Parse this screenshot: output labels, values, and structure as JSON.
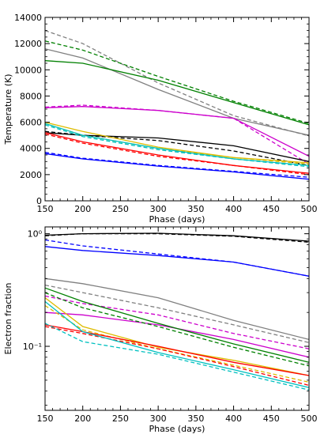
{
  "chart_data": [
    {
      "type": "line",
      "xlabel": "Phase (days)",
      "ylabel": "Temperature (K)",
      "xlim": [
        150,
        500
      ],
      "ylim": [
        0,
        14000
      ],
      "yscale": "linear",
      "xticks": [
        150,
        200,
        250,
        300,
        350,
        400,
        450,
        500
      ],
      "yticks": [
        0,
        2000,
        4000,
        6000,
        8000,
        10000,
        12000,
        14000
      ],
      "series": [
        {
          "color": "#808080",
          "style": "dashed",
          "x": [
            150,
            200,
            300,
            400,
            500
          ],
          "y": [
            13000,
            12000,
            9000,
            6500,
            4950
          ]
        },
        {
          "color": "#808080",
          "style": "solid",
          "x": [
            150,
            200,
            300,
            400,
            500
          ],
          "y": [
            11600,
            10900,
            8500,
            6300,
            5000
          ]
        },
        {
          "color": "#008000",
          "style": "dashed",
          "x": [
            150,
            200,
            300,
            400,
            500
          ],
          "y": [
            12200,
            11500,
            9500,
            7600,
            5900
          ]
        },
        {
          "color": "#008000",
          "style": "solid",
          "x": [
            150,
            200,
            300,
            400,
            500
          ],
          "y": [
            10700,
            10500,
            9200,
            7500,
            5800
          ]
        },
        {
          "color": "#cc00cc",
          "style": "dashed",
          "x": [
            150,
            200,
            300,
            400,
            500
          ],
          "y": [
            7150,
            7300,
            6900,
            6300,
            2800
          ]
        },
        {
          "color": "#cc00cc",
          "style": "solid",
          "x": [
            150,
            200,
            300,
            400,
            500
          ],
          "y": [
            7100,
            7200,
            6900,
            6300,
            3400
          ]
        },
        {
          "color": "#000000",
          "style": "dashed",
          "x": [
            150,
            200,
            300,
            400,
            500
          ],
          "y": [
            5300,
            5000,
            4600,
            3800,
            2700
          ]
        },
        {
          "color": "#000000",
          "style": "solid",
          "x": [
            150,
            200,
            300,
            400,
            500
          ],
          "y": [
            5200,
            5000,
            4800,
            4200,
            3000
          ]
        },
        {
          "color": "#ddbb00",
          "style": "dashed",
          "x": [
            150,
            200,
            300,
            400,
            500
          ],
          "y": [
            5900,
            5000,
            4000,
            3300,
            2800
          ]
        },
        {
          "color": "#ddbb00",
          "style": "solid",
          "x": [
            150,
            200,
            300,
            400,
            500
          ],
          "y": [
            6000,
            5300,
            4100,
            3300,
            2900
          ]
        },
        {
          "color": "#00c0c0",
          "style": "dashed",
          "x": [
            150,
            200,
            300,
            400,
            500
          ],
          "y": [
            5800,
            4900,
            3900,
            3200,
            2600
          ]
        },
        {
          "color": "#00c0c0",
          "style": "solid",
          "x": [
            150,
            200,
            300,
            400,
            500
          ],
          "y": [
            5900,
            5000,
            4000,
            3200,
            2700
          ]
        },
        {
          "color": "#ff0000",
          "style": "dashed",
          "x": [
            150,
            200,
            300,
            400,
            500
          ],
          "y": [
            5100,
            4400,
            3400,
            2700,
            2000
          ]
        },
        {
          "color": "#ff0000",
          "style": "solid",
          "x": [
            150,
            200,
            300,
            400,
            500
          ],
          "y": [
            5200,
            4500,
            3500,
            2700,
            2100
          ]
        },
        {
          "color": "#0000ff",
          "style": "dashed",
          "x": [
            150,
            200,
            300,
            400,
            500
          ],
          "y": [
            3700,
            3250,
            2700,
            2250,
            1800
          ]
        },
        {
          "color": "#0000ff",
          "style": "solid",
          "x": [
            150,
            200,
            300,
            400,
            500
          ],
          "y": [
            3600,
            3200,
            2650,
            2200,
            1650
          ]
        }
      ]
    },
    {
      "type": "line",
      "xlabel": "Phase (days)",
      "ylabel": "Electron fraction",
      "xlim": [
        150,
        500
      ],
      "ylim": [
        0.027,
        1.15
      ],
      "yscale": "log",
      "xticks": [
        150,
        200,
        250,
        300,
        350,
        400,
        450,
        500
      ],
      "yticks": [
        0.1,
        1
      ],
      "ytick_labels": [
        "10⁻¹",
        "10⁰"
      ],
      "series": [
        {
          "color": "#000000",
          "style": "dashed",
          "x": [
            150,
            200,
            300,
            400,
            500
          ],
          "y": [
            0.96,
            1.0,
            1.0,
            0.95,
            0.84
          ]
        },
        {
          "color": "#000000",
          "style": "solid",
          "x": [
            150,
            200,
            300,
            400,
            500
          ],
          "y": [
            0.97,
            1.0,
            1.01,
            0.96,
            0.86
          ]
        },
        {
          "color": "#0000ff",
          "style": "dashed",
          "x": [
            150,
            200,
            300,
            400,
            500
          ],
          "y": [
            0.88,
            0.78,
            0.66,
            0.56,
            0.42
          ]
        },
        {
          "color": "#0000ff",
          "style": "solid",
          "x": [
            150,
            200,
            300,
            400,
            500
          ],
          "y": [
            0.77,
            0.71,
            0.64,
            0.56,
            0.42
          ]
        },
        {
          "color": "#808080",
          "style": "solid",
          "x": [
            150,
            200,
            300,
            400,
            500
          ],
          "y": [
            0.4,
            0.36,
            0.27,
            0.17,
            0.115
          ]
        },
        {
          "color": "#808080",
          "style": "dashed",
          "x": [
            150,
            200,
            300,
            400,
            500
          ],
          "y": [
            0.35,
            0.3,
            0.22,
            0.155,
            0.108
          ]
        },
        {
          "color": "#cc00cc",
          "style": "dashed",
          "x": [
            150,
            200,
            300,
            400,
            500
          ],
          "y": [
            0.28,
            0.24,
            0.19,
            0.13,
            0.095
          ]
        },
        {
          "color": "#cc00cc",
          "style": "solid",
          "x": [
            150,
            200,
            300,
            400,
            500
          ],
          "y": [
            0.2,
            0.19,
            0.155,
            0.115,
            0.08
          ]
        },
        {
          "color": "#008000",
          "style": "solid",
          "x": [
            150,
            200,
            300,
            400,
            500
          ],
          "y": [
            0.33,
            0.25,
            0.16,
            0.105,
            0.072
          ]
        },
        {
          "color": "#008000",
          "style": "dashed",
          "x": [
            150,
            200,
            300,
            400,
            500
          ],
          "y": [
            0.3,
            0.22,
            0.15,
            0.098,
            0.067
          ]
        },
        {
          "color": "#ddbb00",
          "style": "solid",
          "x": [
            150,
            200,
            300,
            400,
            500
          ],
          "y": [
            0.27,
            0.15,
            0.098,
            0.075,
            0.055
          ]
        },
        {
          "color": "#ddbb00",
          "style": "dashed",
          "x": [
            150,
            200,
            300,
            400,
            500
          ],
          "y": [
            0.23,
            0.14,
            0.095,
            0.068,
            0.048
          ]
        },
        {
          "color": "#ff0000",
          "style": "solid",
          "x": [
            150,
            200,
            300,
            400,
            500
          ],
          "y": [
            0.155,
            0.135,
            0.1,
            0.072,
            0.055
          ]
        },
        {
          "color": "#ff0000",
          "style": "dashed",
          "x": [
            150,
            200,
            300,
            400,
            500
          ],
          "y": [
            0.15,
            0.13,
            0.095,
            0.066,
            0.045
          ]
        },
        {
          "color": "#00c0c0",
          "style": "solid",
          "x": [
            150,
            200,
            300,
            400,
            500
          ],
          "y": [
            0.25,
            0.135,
            0.088,
            0.062,
            0.043
          ]
        },
        {
          "color": "#00c0c0",
          "style": "dashed",
          "x": [
            150,
            200,
            300,
            400,
            500
          ],
          "y": [
            0.16,
            0.11,
            0.085,
            0.059,
            0.041
          ]
        }
      ]
    }
  ]
}
